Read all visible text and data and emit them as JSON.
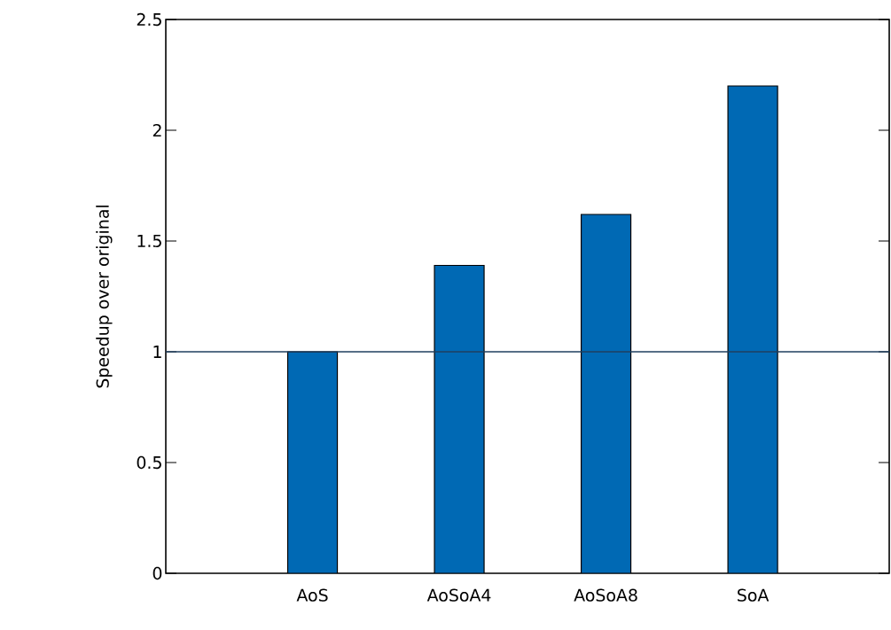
{
  "chart_data": {
    "type": "bar",
    "ylabel": "Speedup over original",
    "categories": [
      "AoS",
      "AoSoA4",
      "AoSoA8",
      "SoA"
    ],
    "values": [
      1.0,
      1.39,
      1.62,
      2.2
    ],
    "color": "#0069b4",
    "ylim": [
      0,
      2.5
    ],
    "yticks": [
      0,
      0.5,
      1,
      1.5,
      2,
      2.5
    ],
    "grid": false,
    "ref_lines": [
      {
        "axis": "y",
        "value": 1,
        "color": "#1f3f5f"
      }
    ]
  }
}
